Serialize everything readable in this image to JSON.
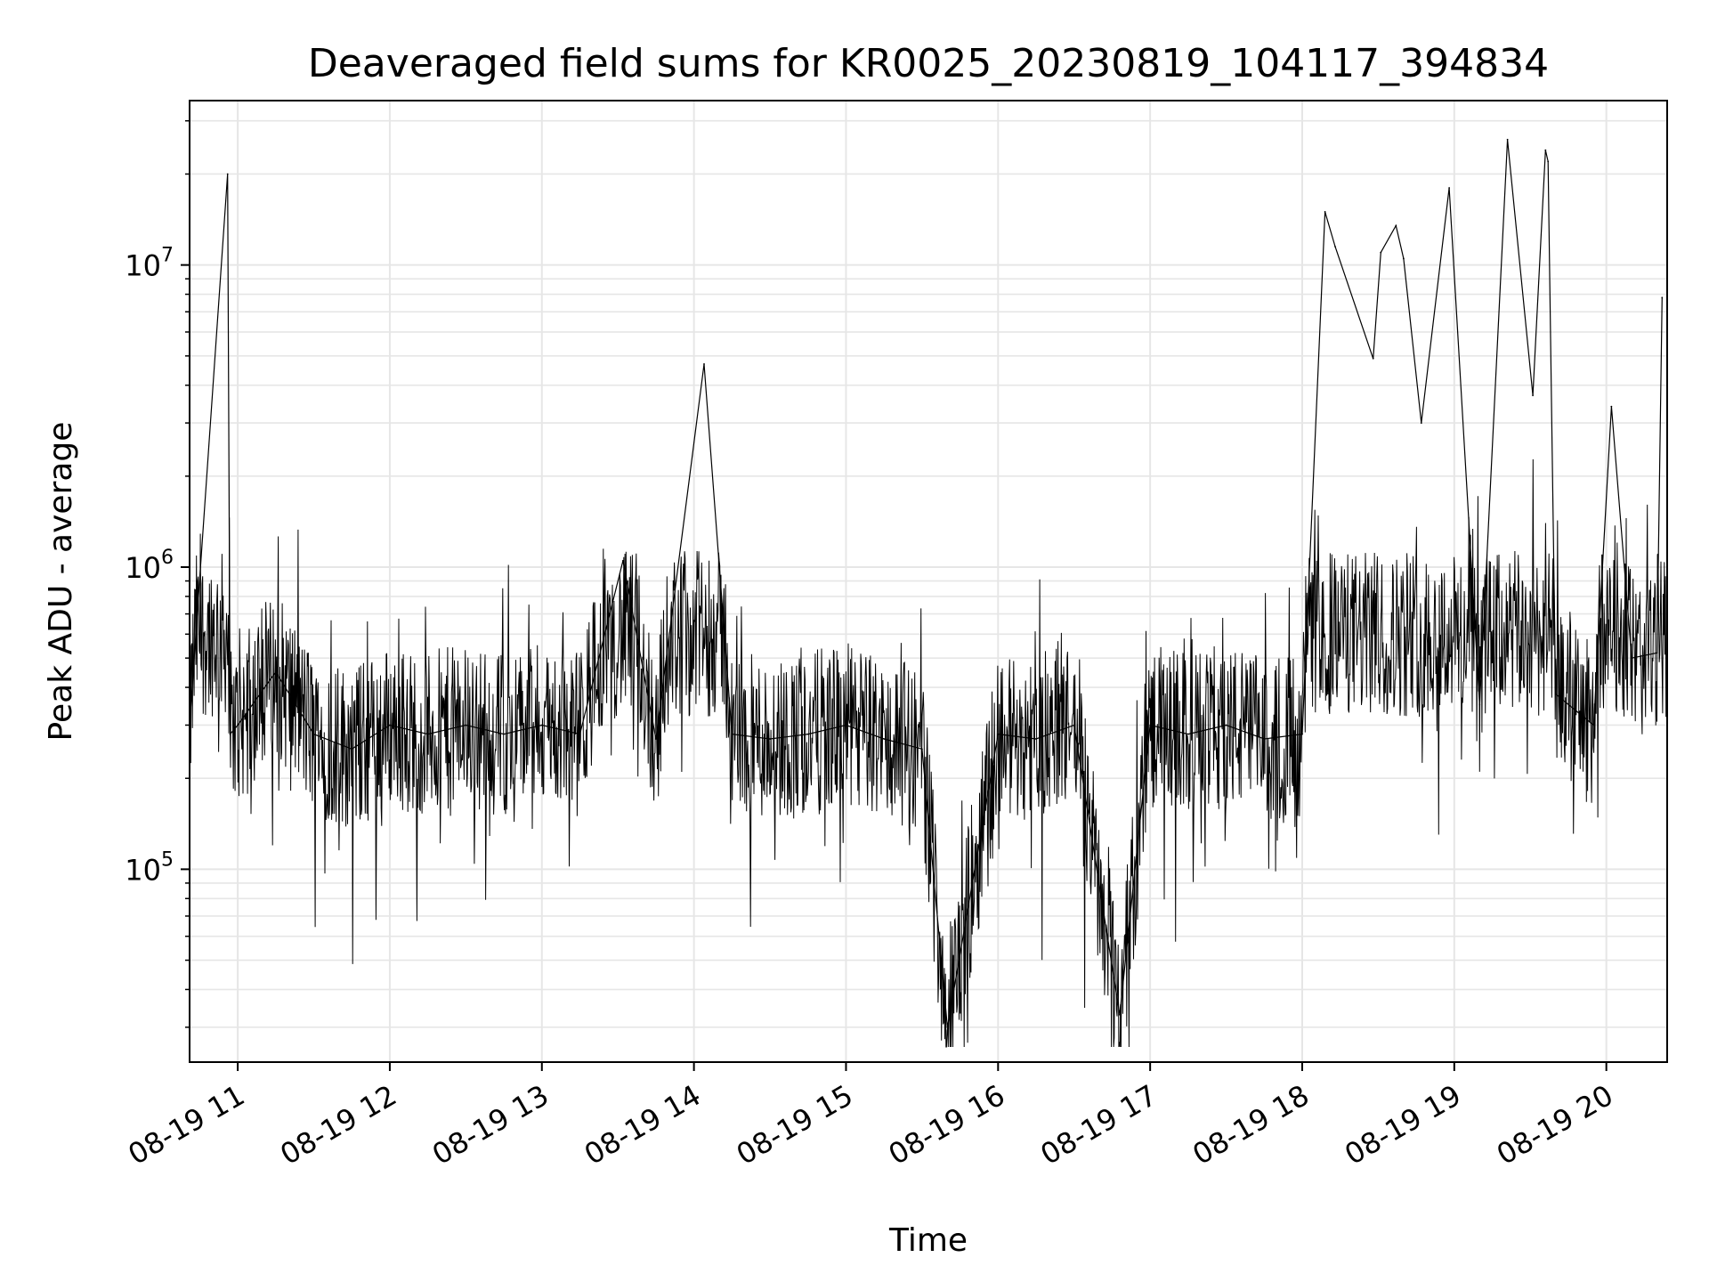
{
  "chart_data": {
    "type": "line",
    "title": "Deaveraged field sums for KR0025_20230819_104117_394834",
    "xlabel": "Time",
    "ylabel": "Peak ADU - average",
    "yscale": "log",
    "ylim": [
      23000,
      35000000
    ],
    "xlim": [
      "2023-08-19 10:41",
      "2023-08-19 20:24"
    ],
    "grid": true,
    "line_color": "#000000",
    "grid_color": "#e6e6e6",
    "x_ticks": [
      "08-19 11",
      "08-19 12",
      "08-19 13",
      "08-19 14",
      "08-19 15",
      "08-19 16",
      "08-19 17",
      "08-19 18",
      "08-19 19",
      "08-19 20"
    ],
    "y_ticks": [
      {
        "base": "10",
        "exp": "5",
        "value": 100000
      },
      {
        "base": "10",
        "exp": "6",
        "value": 1000000
      },
      {
        "base": "10",
        "exp": "7",
        "value": 10000000
      }
    ],
    "series": [
      {
        "x": [
          "2023-08-19 10:41",
          "2023-08-19 10:56",
          "2023-08-19 10:57",
          "2023-08-19 11:00",
          "2023-08-19 11:15",
          "2023-08-19 11:30",
          "2023-08-19 11:45",
          "2023-08-19 12:00",
          "2023-08-19 12:15",
          "2023-08-19 12:30",
          "2023-08-19 12:45",
          "2023-08-19 13:00",
          "2023-08-19 13:15",
          "2023-08-19 13:32",
          "2023-08-19 13:45",
          "2023-08-19 14:04",
          "2023-08-19 14:15",
          "2023-08-19 14:30",
          "2023-08-19 14:45",
          "2023-08-19 15:00",
          "2023-08-19 15:15",
          "2023-08-19 15:30",
          "2023-08-19 15:40",
          "2023-08-19 16:00",
          "2023-08-19 16:15",
          "2023-08-19 16:30",
          "2023-08-19 16:48",
          "2023-08-19 17:00",
          "2023-08-19 17:15",
          "2023-08-19 17:30",
          "2023-08-19 17:45",
          "2023-08-19 18:00",
          "2023-08-19 18:09",
          "2023-08-19 18:13",
          "2023-08-19 18:28",
          "2023-08-19 18:31",
          "2023-08-19 18:37",
          "2023-08-19 18:40",
          "2023-08-19 18:47",
          "2023-08-19 18:58",
          "2023-08-19 19:10",
          "2023-08-19 19:21",
          "2023-08-19 19:31",
          "2023-08-19 19:36",
          "2023-08-19 19:37",
          "2023-08-19 19:40",
          "2023-08-19 19:55",
          "2023-08-19 20:02",
          "2023-08-19 20:10",
          "2023-08-19 20:20",
          "2023-08-19 20:22"
        ],
        "y": [
          300000,
          20000000,
          280000,
          300000,
          450000,
          280000,
          250000,
          300000,
          280000,
          300000,
          280000,
          300000,
          280000,
          1050000,
          270000,
          4700000,
          280000,
          270000,
          280000,
          300000,
          270000,
          250000,
          30000,
          280000,
          270000,
          300000,
          33000,
          300000,
          280000,
          300000,
          270000,
          280000,
          15000000,
          11500000,
          4900000,
          11000000,
          13500000,
          10500000,
          3000000,
          18000000,
          350000,
          26000000,
          3700000,
          24000000,
          22000000,
          380000,
          300000,
          3400000,
          500000,
          520000,
          7800000
        ]
      }
    ]
  }
}
